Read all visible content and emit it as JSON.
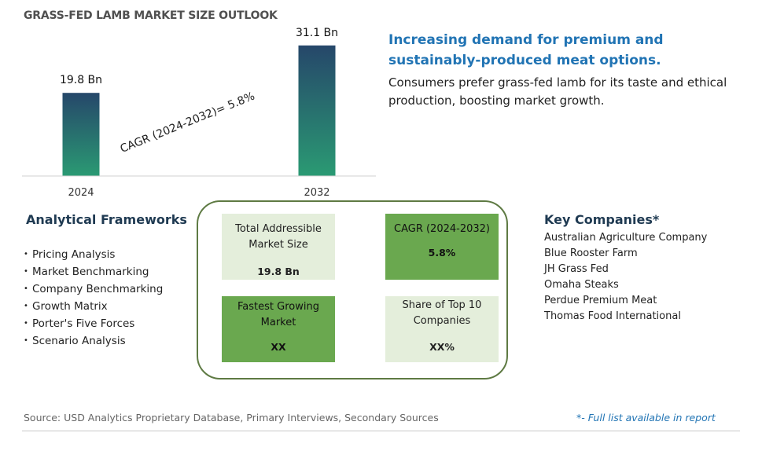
{
  "title": "GRASS-FED LAMB MARKET SIZE OUTLOOK",
  "chart_data": {
    "type": "bar",
    "categories": [
      "2024",
      "2032"
    ],
    "values": [
      19.8,
      31.1
    ],
    "value_labels": [
      "19.8 Bn",
      "31.1 Bn"
    ],
    "annotation": "CAGR (2024-2032)=  5.8%",
    "ylim": [
      0,
      35
    ],
    "bar_gradient": [
      "#2a9a73",
      "#26476a"
    ],
    "grid": false,
    "legend": "none"
  },
  "headline": "Increasing demand for premium and sustainably-produced meat options.",
  "subtext": "Consumers prefer grass-fed lamb for its taste and ethical production, boosting market growth.",
  "frameworks": {
    "title": "Analytical Frameworks",
    "items": [
      "Pricing Analysis",
      "Market Benchmarking",
      "Company Benchmarking",
      "Growth Matrix",
      "Porter's Five Forces",
      "Scenario Analysis"
    ]
  },
  "tiles": {
    "tam": {
      "label": "Total Addressible Market Size",
      "value": "19.8 Bn"
    },
    "cagr": {
      "label": "CAGR (2024-2032)",
      "value": "5.8%"
    },
    "fastest": {
      "label": "Fastest Growing Market",
      "value": "XX"
    },
    "share": {
      "label": "Share of Top 10 Companies",
      "value": "XX%"
    }
  },
  "companies": {
    "title": "Key Companies*",
    "items": [
      "Australian Agriculture Company",
      "Blue Rooster Farm",
      "JH Grass Fed",
      "Omaha Steaks",
      "Perdue Premium Meat",
      "Thomas Food International"
    ]
  },
  "footer": {
    "source": "Source: USD Analytics Proprietary Database, Primary Interviews, Secondary Sources",
    "note": "*- Full list available in report"
  },
  "colors": {
    "accent_blue": "#2174b4",
    "panel_border": "#5e7a43",
    "tile_light": "#e4eedb",
    "tile_dark": "#6aa84f"
  }
}
